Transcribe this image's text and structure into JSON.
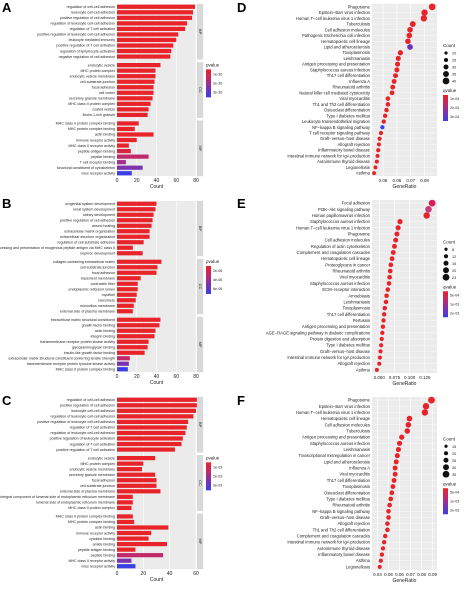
{
  "panels": {
    "a": "A",
    "b": "B",
    "c": "C",
    "d": "D",
    "e": "E",
    "f": "F"
  },
  "chart_data": [
    {
      "type": "bar",
      "panel": "A",
      "xlabel": "Count",
      "xlim": [
        0,
        80
      ],
      "xticks": [
        0,
        20,
        40,
        60,
        80
      ],
      "legend_title": "pvalue",
      "legend_ticks": [
        "1e-30",
        "2e-30",
        "3e-30"
      ],
      "groups": [
        {
          "name": "BP",
          "categories": [
            "regulation of cell-cell adhesion",
            "leukocyte cell-cell adhesion",
            "positive regulation of cell adhesion",
            "regulation of leukocyte cell-cell adhesion",
            "regulation of T cell activation",
            "positive regulation of leukocyte cell-cell adhesion",
            "leukocyte mediated immunity",
            "positive regulation of T cell activation",
            "regulation of lymphocyte activation",
            "negative regulation of cell adhesion"
          ],
          "values": [
            79,
            77,
            76,
            71,
            69,
            62,
            60,
            57,
            55,
            54
          ],
          "colors": [
            "#e8232a",
            "#e8232a",
            "#e8232a",
            "#e8232a",
            "#e8232a",
            "#e8232a",
            "#e8232a",
            "#e8232a",
            "#e8232a",
            "#e8232a"
          ]
        },
        {
          "name": "CC",
          "categories": [
            "endocytic vesicle",
            "MHC protein complex",
            "endocytic vesicle membrane",
            "cell-substrate junction",
            "focal adhesion",
            "cell cortex",
            "secretory granule membrane",
            "MHC class II protein complex",
            "coated vesicle",
            "ficolin-1-rich granule"
          ],
          "values": [
            44,
            39,
            39,
            38,
            37,
            37,
            36,
            34,
            32,
            31
          ],
          "colors": [
            "#e8232a",
            "#e8232a",
            "#e8232a",
            "#e8232a",
            "#e8232a",
            "#e8232a",
            "#e8232a",
            "#e8232a",
            "#e8232a",
            "#e8232a"
          ]
        },
        {
          "name": "MF",
          "categories": [
            "MHC class II protein complex binding",
            "MHC protein complex binding",
            "actin binding",
            "immune receptor activity",
            "MHC class II receptor activity",
            "peptide antigen binding",
            "peptide binding",
            "T cell receptor binding",
            "structural constituent of cytoskeleton",
            "virus receptor activity"
          ],
          "values": [
            22,
            18,
            37,
            20,
            12,
            14,
            32,
            9,
            26,
            15
          ],
          "colors": [
            "#e8232a",
            "#e8232a",
            "#e8232a",
            "#e8232a",
            "#e8232a",
            "#d82440",
            "#c02a6a",
            "#a22e8e",
            "#7c33b0",
            "#3b3fe6"
          ]
        }
      ]
    },
    {
      "type": "bar",
      "panel": "B",
      "xlabel": "Count",
      "xlim": [
        0,
        80
      ],
      "xticks": [
        0,
        20,
        40,
        60,
        80
      ],
      "legend_title": "pvalue",
      "legend_ticks": [
        "2e-06",
        "4e-06",
        "6e-06"
      ],
      "groups": [
        {
          "name": "BP",
          "categories": [
            "urogenital system development",
            "renal system development",
            "kidney development",
            "positive regulation of cell adhesion",
            "wound healing",
            "extracellular matrix organization",
            "extracellular structure organization",
            "regulation of cell-substrate adhesion",
            "antigen processing and presentation of exogenous peptide antigen via MHC class II",
            "nephron development"
          ],
          "values": [
            40,
            39,
            37,
            36,
            35,
            33,
            33,
            27,
            16,
            26
          ],
          "colors": [
            "#e8232a",
            "#e8232a",
            "#e8232a",
            "#e8232a",
            "#e8232a",
            "#e8232a",
            "#e8232a",
            "#e8232a",
            "#e8232a",
            "#e8232a"
          ]
        },
        {
          "name": "CC",
          "categories": [
            "collagen-containing extracellular matrix",
            "cell-substrate junction",
            "focal adhesion",
            "basement membrane",
            "contractile fiber",
            "endoplasmic reticulum lumen",
            "myofibril",
            "sarcomere",
            "microvillus membrane",
            "external side of plasma membrane"
          ],
          "values": [
            45,
            41,
            40,
            24,
            21,
            21,
            20,
            19,
            17,
            16
          ],
          "colors": [
            "#e8232a",
            "#e8232a",
            "#e8232a",
            "#e8232a",
            "#e8232a",
            "#e8232a",
            "#e8232a",
            "#e8232a",
            "#e8232a",
            "#e8232a"
          ]
        },
        {
          "name": "MF",
          "categories": [
            "extracellular matrix structural constituent",
            "growth factor binding",
            "actin binding",
            "integrin binding",
            "transmembrane receptor protein kinase activity",
            "glycosaminoglycan binding",
            "insulin-like growth factor binding",
            "extracellular matrix structural constituent conferring tensile strength",
            "transmembrane receptor protein tyrosine kinase activity",
            "MHC class II protein complex binding"
          ],
          "values": [
            44,
            43,
            39,
            38,
            32,
            31,
            28,
            13,
            12,
            11
          ],
          "colors": [
            "#e8232a",
            "#e8232a",
            "#e8232a",
            "#e8232a",
            "#e8232a",
            "#e8232a",
            "#e8232a",
            "#c02a6a",
            "#7c33b0",
            "#3b3fe6"
          ]
        }
      ]
    },
    {
      "type": "bar",
      "panel": "C",
      "xlabel": "Count",
      "xlim": [
        0,
        60
      ],
      "xticks": [
        0,
        20,
        40,
        60
      ],
      "legend_title": "pvalue",
      "legend_ticks": [
        "1e-03",
        "2e-03",
        "3e-03"
      ],
      "groups": [
        {
          "name": "BP",
          "categories": [
            "regulation of cell-cell adhesion",
            "positive regulation of cell adhesion",
            "leukocyte cell-cell adhesion",
            "regulation of leukocyte cell-cell adhesion",
            "positive regulation of leukocyte cell-cell adhesion",
            "regulation of T cell activation",
            "regulation of leukocyte cell-cell adhesion",
            "positive regulation of leukocyte activation",
            "regulation of T cell activation",
            "positive regulation of T cell activation"
          ],
          "values": [
            63,
            61,
            60,
            58,
            54,
            53,
            52,
            50,
            49,
            44
          ],
          "colors": [
            "#e8232a",
            "#e8232a",
            "#e8232a",
            "#e8232a",
            "#e8232a",
            "#e8232a",
            "#e8232a",
            "#e8232a",
            "#e8232a",
            "#e8232a"
          ]
        },
        {
          "name": "CC",
          "categories": [
            "endocytic vesicle",
            "MHC protein complex",
            "endocytic vesicle membrane",
            "secretory granule membrane",
            "focal adhesion",
            "cell-substrate junction",
            "external side of plasma membrane",
            "integral component of lumenal side of endoplasmic reticulum membrane",
            "lumenal side of endoplasmic reticulum membrane",
            "MHC class II protein complex"
          ],
          "values": [
            29,
            20,
            19,
            29,
            30,
            30,
            33,
            12,
            12,
            11
          ],
          "colors": [
            "#e8232a",
            "#e8232a",
            "#e8232a",
            "#e8232a",
            "#e8232a",
            "#e8232a",
            "#e8232a",
            "#e8232a",
            "#e8232a",
            "#e8232a"
          ]
        },
        {
          "name": "MF",
          "categories": [
            "MHC class II protein complex binding",
            "MHC protein complex binding",
            "actin binding",
            "immune receptor activity",
            "cytokine binding",
            "amide binding",
            "peptide antigen binding",
            "peptide binding",
            "MHC class II receptor activity",
            "virus receptor activity"
          ],
          "values": [
            12,
            13,
            39,
            26,
            24,
            38,
            14,
            35,
            11,
            14
          ],
          "colors": [
            "#e8232a",
            "#e8232a",
            "#e8232a",
            "#e8232a",
            "#e8232a",
            "#e8232a",
            "#e8232a",
            "#c02a6a",
            "#7c33b0",
            "#3b3fe6"
          ]
        }
      ]
    },
    {
      "type": "scatter",
      "panel": "D",
      "xlabel": "GeneRatio",
      "xlim": [
        0.042,
        0.089
      ],
      "xticks": [
        "0.05",
        "0.06",
        "0.07",
        "0.08"
      ],
      "size_legend_title": "Count",
      "size_legend": [
        "20",
        "25",
        "30",
        "35",
        "40"
      ],
      "color_legend_title": "qvalue",
      "color_legend_ticks": [
        "1e-04",
        "2e-04",
        "3e-04"
      ],
      "categories": [
        "Phagosome",
        "Epstein−Barr virus infection",
        "Human T−cell leukemia virus 1 infection",
        "Tuberculosis",
        "Cell adhesion molecules",
        "Pathogenic Escherichia coli infection",
        "Hematopoietic cell lineage",
        "Lipid and atherosclerosis",
        "Toxoplasmosis",
        "Leishmaniasis",
        "Antigen processing and presentation",
        "Staphylococcus aureus infection",
        "Th17 cell differentiation",
        "Influenza A",
        "Rheumatoid arthritis",
        "Natural killer cell mediated cytotoxicity",
        "Viral myocarditis",
        "Th1 and Th2 cell differentiation",
        "Osteoclast differentiation",
        "Type I diabetes mellitus",
        "Leukocyte transendothelial migration",
        "NF−kappa B signaling pathway",
        "T cell receptor signaling pathway",
        "Graft−versus−host disease",
        "Allograft rejection",
        "Inflammatory bowel disease",
        "Intestinal immune network for IgA production",
        "Autoimmune thyroid disease",
        "Legionellosis",
        "Asthma"
      ],
      "x": [
        0.0855,
        0.08,
        0.0795,
        0.0715,
        0.0695,
        0.069,
        0.068,
        0.0695,
        0.0625,
        0.061,
        0.0605,
        0.06,
        0.059,
        0.058,
        0.057,
        0.0565,
        0.0535,
        0.0535,
        0.0525,
        0.0515,
        0.0505,
        0.0495,
        0.0485,
        0.0475,
        0.047,
        0.0465,
        0.046,
        0.0455,
        0.0445,
        0.0435
      ],
      "colors": [
        "#e8232a",
        "#e8232a",
        "#e8232a",
        "#e8232a",
        "#e8232a",
        "#e8232a",
        "#e8232a",
        "#6b31b8",
        "#e8232a",
        "#e8232a",
        "#e8232a",
        "#e8232a",
        "#e8232a",
        "#e8232a",
        "#e8232a",
        "#e8232a",
        "#e8232a",
        "#e8232a",
        "#e8232a",
        "#e8232a",
        "#e8232a",
        "#3b3fe6",
        "#e8232a",
        "#e8232a",
        "#e8232a",
        "#e8232a",
        "#e8232a",
        "#e8232a",
        "#e8232a",
        "#e8232a"
      ]
    },
    {
      "type": "scatter",
      "panel": "E",
      "xlabel": "GeneRatio",
      "xlim": [
        0.038,
        0.145
      ],
      "xticks": [
        "0.050",
        "0.075",
        "0.100",
        "0.125"
      ],
      "size_legend_title": "Count",
      "size_legend": [
        "8",
        "12",
        "16",
        "20",
        "24"
      ],
      "color_legend_title": "qvalue",
      "color_legend_ticks": [
        "5e-04",
        "1e-03",
        "2e-03"
      ],
      "categories": [
        "Focal adhesion",
        "PI3K−Akt signaling pathway",
        "Human papillomavirus infection",
        "Staphylococcus aureus infection",
        "Human T−cell leukemia virus 1 infection",
        "Phagosome",
        "Cell adhesion molecules",
        "Regulation of actin cytoskeleton",
        "Complement and coagulation cascades",
        "Hematopoietic cell lineage",
        "Proteoglycans in cancer",
        "Rheumatoid arthritis",
        "Viral myocarditis",
        "Staphylococcus aureus infection",
        "ECM−receptor interaction",
        "Amoebiasis",
        "Leishmaniasis",
        "Toxoplasmosis",
        "Th17 cell differentiation",
        "Pertussis",
        "Antigen processing and presentation",
        "AGE−RAGE signaling pathway in diabetic complications",
        "Protein digestion and absorption",
        "Type I diabetes mellitus",
        "Graft−versus−host disease",
        "Intestinal immune network for IgA production",
        "Allograft rejection",
        "Asthma"
      ],
      "x": [
        0.137,
        0.131,
        0.128,
        0.084,
        0.081,
        0.079,
        0.077,
        0.075,
        0.073,
        0.071,
        0.069,
        0.068,
        0.067,
        0.066,
        0.064,
        0.062,
        0.061,
        0.059,
        0.058,
        0.057,
        0.056,
        0.055,
        0.054,
        0.053,
        0.052,
        0.051,
        0.05,
        0.046
      ],
      "colors": [
        "#d81f5c",
        "#c93a7a",
        "#e8232a",
        "#e8232a",
        "#e8232a",
        "#e8232a",
        "#e8232a",
        "#e8232a",
        "#e8232a",
        "#e8232a",
        "#e8232a",
        "#e8232a",
        "#e8232a",
        "#e8232a",
        "#e8232a",
        "#e8232a",
        "#e8232a",
        "#e8232a",
        "#e8232a",
        "#e8232a",
        "#e8232a",
        "#e8232a",
        "#e8232a",
        "#e8232a",
        "#e8232a",
        "#e8232a",
        "#e8232a",
        "#e8232a"
      ]
    },
    {
      "type": "scatter",
      "panel": "F",
      "xlabel": "GeneRatio",
      "xlim": [
        0.035,
        0.094
      ],
      "xticks": [
        "0.04",
        "0.05",
        "0.06",
        "0.07",
        "0.08",
        "0.09"
      ],
      "size_legend_title": "Count",
      "size_legend": [
        "15",
        "20",
        "25",
        "30",
        "35"
      ],
      "color_legend_title": "qvalue",
      "color_legend_ticks": [
        "5e-04",
        "1e-03",
        "2e-03"
      ],
      "categories": [
        "Phagosome",
        "Epstein−Barr virus infection",
        "Human T−cell leukemia virus 1 infection",
        "Hematopoietic cell lineage",
        "Cell adhesion molecules",
        "Tuberculosis",
        "Antigen processing and presentation",
        "Staphylococcus aureus infection",
        "Leishmaniasis",
        "Transcriptional misregulation in cancer",
        "Lipid and atherosclerosis",
        "Influenza A",
        "Viral myocarditis",
        "Th17 cell differentiation",
        "Toxoplasmosis",
        "Osteoclast differentiation",
        "Type I diabetes mellitus",
        "Rheumatoid arthritis",
        "NF−kappa B signaling pathway",
        "Graft−versus−host disease",
        "Allograft rejection",
        "Th1 and Th2 cell differentiation",
        "Complement and coagulation cascades",
        "Intestinal immune network for IgA production",
        "Autoimmune thyroid disease",
        "Inflammatory bowel disease",
        "Asthma",
        "Legionellosis"
      ],
      "x": [
        0.089,
        0.084,
        0.083,
        0.069,
        0.068,
        0.067,
        0.062,
        0.06,
        0.059,
        0.058,
        0.057,
        0.056,
        0.056,
        0.055,
        0.054,
        0.053,
        0.052,
        0.051,
        0.05,
        0.05,
        0.049,
        0.049,
        0.047,
        0.046,
        0.045,
        0.044,
        0.043,
        0.042
      ],
      "colors": [
        "#e8232a",
        "#e8232a",
        "#e8232a",
        "#e8232a",
        "#e8232a",
        "#e8232a",
        "#e8232a",
        "#e8232a",
        "#e8232a",
        "#e8232a",
        "#e8232a",
        "#e8232a",
        "#e8232a",
        "#e8232a",
        "#e8232a",
        "#e8232a",
        "#e8232a",
        "#e8232a",
        "#e8232a",
        "#e8232a",
        "#e8232a",
        "#e8232a",
        "#e8232a",
        "#e8232a",
        "#e8232a",
        "#e8232a",
        "#e8232a",
        "#e8232a"
      ]
    }
  ]
}
